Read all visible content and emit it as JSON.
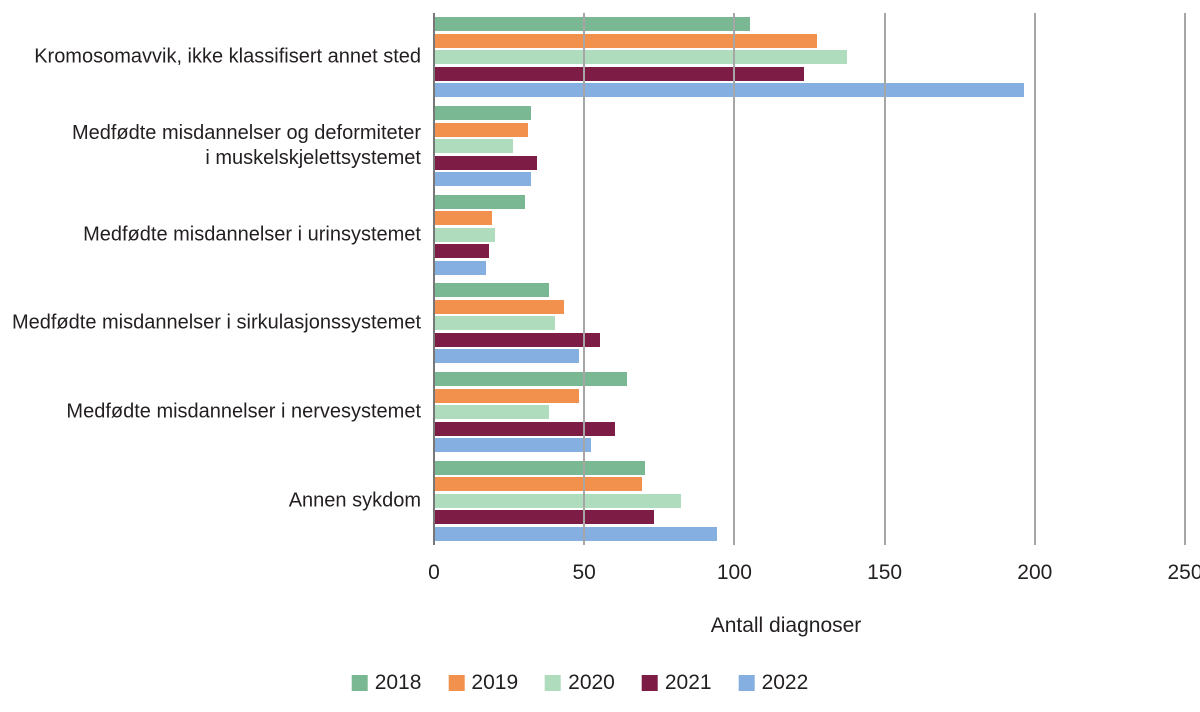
{
  "chart_data": {
    "type": "bar",
    "orientation": "horizontal",
    "title": "",
    "xlabel": "Antall diagnoser",
    "ylabel": "",
    "xlim": [
      0,
      250
    ],
    "xticks": [
      0,
      50,
      100,
      150,
      200,
      250
    ],
    "grid": true,
    "legend_position": "bottom",
    "categories": [
      [
        "Kromosomavvik, ikke klassifisert annet sted"
      ],
      [
        "Medfødte misdannelser og deformiteter",
        "i muskelskjelettsystemet"
      ],
      [
        "Medfødte misdannelser i urinsystemet"
      ],
      [
        "Medfødte misdannelser i sirkulasjonssystemet"
      ],
      [
        "Medfødte misdannelser i nervesystemet"
      ],
      [
        "Annen sykdom"
      ]
    ],
    "series": [
      {
        "name": "2018",
        "color": "#7ab793",
        "values": [
          105,
          32,
          30,
          38,
          64,
          70
        ]
      },
      {
        "name": "2019",
        "color": "#f2904e",
        "values": [
          127,
          31,
          19,
          43,
          48,
          69
        ]
      },
      {
        "name": "2020",
        "color": "#aedcbd",
        "values": [
          137,
          26,
          20,
          40,
          38,
          82
        ]
      },
      {
        "name": "2021",
        "color": "#7d1c45",
        "values": [
          123,
          34,
          18,
          55,
          60,
          73
        ]
      },
      {
        "name": "2022",
        "color": "#84afe0",
        "values": [
          196,
          32,
          17,
          48,
          52,
          94
        ]
      }
    ],
    "colors": {
      "text": "#231f20",
      "gridline": "#a6a6a6",
      "axis_line": "#787878",
      "background": "#ffffff"
    }
  }
}
